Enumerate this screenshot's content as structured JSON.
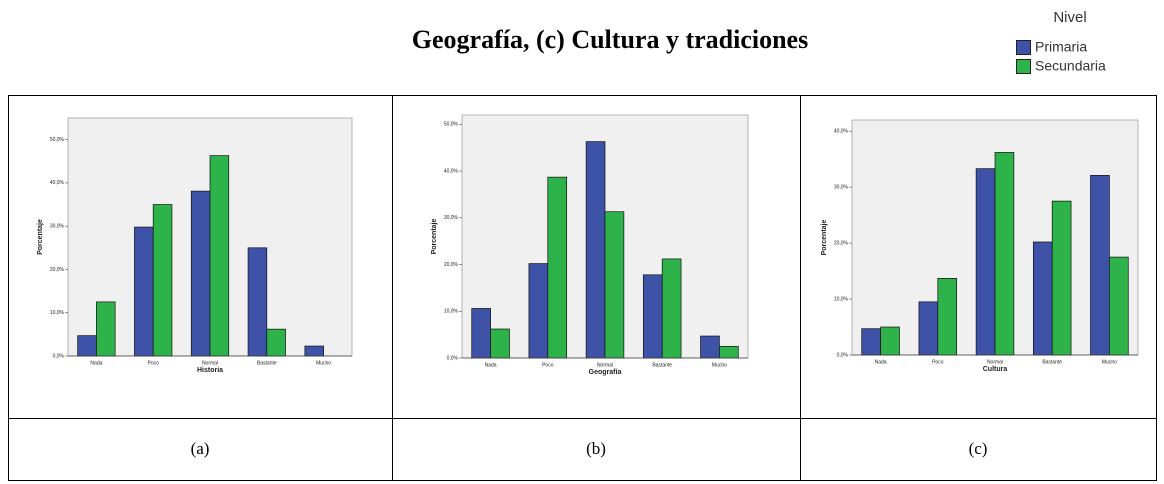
{
  "title": "Geografía, (c) Cultura y tradiciones",
  "legend": {
    "title": "Nivel"
  },
  "captions": [
    "(a)",
    "(b)",
    "(c)"
  ],
  "chart_data": [
    {
      "type": "bar",
      "x_label": "Historia",
      "y_label": "Porcentaje",
      "categories": [
        "Nada",
        "Poco",
        "Normal",
        "Bastante",
        "Mucho"
      ],
      "series": [
        {
          "name": "Primaria",
          "color": "#3e53a8",
          "values": [
            4.7,
            29.8,
            38.1,
            25.0,
            2.3
          ]
        },
        {
          "name": "Secundaria",
          "color": "#2db34a",
          "values": [
            12.5,
            35.0,
            46.3,
            6.2,
            0
          ]
        }
      ],
      "ylim": [
        0,
        55
      ],
      "yticks": [
        {
          "value": 0,
          "label": "0,0%"
        },
        {
          "value": 10,
          "label": "10,0%"
        },
        {
          "value": 20,
          "label": "20,0%"
        },
        {
          "value": 30,
          "label": "30,0%"
        },
        {
          "value": 40,
          "label": "40,0%"
        },
        {
          "value": 50,
          "label": "50,0%"
        }
      ]
    },
    {
      "type": "bar",
      "x_label": "Geografía",
      "y_label": "Porcentaje",
      "categories": [
        "Nada",
        "Poco",
        "Normal",
        "Bastante",
        "Mucho"
      ],
      "series": [
        {
          "name": "Primaria",
          "color": "#3e53a8",
          "values": [
            10.6,
            20.2,
            46.3,
            17.8,
            4.7
          ]
        },
        {
          "name": "Secundaria",
          "color": "#2db34a",
          "values": [
            6.2,
            38.7,
            31.3,
            21.2,
            2.5
          ]
        }
      ],
      "ylim": [
        0,
        52
      ],
      "yticks": [
        {
          "value": 0,
          "label": "0,0%"
        },
        {
          "value": 10,
          "label": "10,0%"
        },
        {
          "value": 20,
          "label": "20,0%"
        },
        {
          "value": 30,
          "label": "30,0%"
        },
        {
          "value": 40,
          "label": "40,0%"
        },
        {
          "value": 50,
          "label": "50,0%"
        }
      ]
    },
    {
      "type": "bar",
      "x_label": "Cultura",
      "y_label": "Porcentaje",
      "categories": [
        "Nada",
        "Poco",
        "Normal",
        "Bastante",
        "Mucho"
      ],
      "series": [
        {
          "name": "Primaria",
          "color": "#3e53a8",
          "values": [
            4.7,
            9.5,
            33.3,
            20.2,
            32.1
          ]
        },
        {
          "name": "Secundaria",
          "color": "#2db34a",
          "values": [
            5.0,
            13.7,
            36.2,
            27.5,
            17.5
          ]
        }
      ],
      "ylim": [
        0,
        42
      ],
      "yticks": [
        {
          "value": 0,
          "label": "0,0%"
        },
        {
          "value": 10,
          "label": "10,0%"
        },
        {
          "value": 20,
          "label": "20,0%"
        },
        {
          "value": 30,
          "label": "30,0%"
        },
        {
          "value": 40,
          "label": "40,0%"
        }
      ]
    }
  ]
}
